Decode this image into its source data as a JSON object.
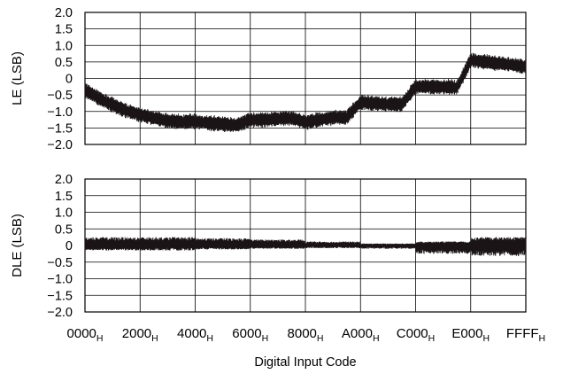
{
  "chart_data": [
    {
      "type": "line",
      "ylabel": "LE (LSB)",
      "ylim": [
        -2.0,
        2.0
      ],
      "yticks": [
        "2.0",
        "1.5",
        "1.0",
        "0.5",
        "0",
        "−0.5",
        "−1.0",
        "−1.5",
        "−2.0"
      ],
      "grid": true,
      "series": [
        {
          "x": [
            0,
            2048,
            4096,
            6144,
            8192,
            10240,
            12288,
            14336,
            16384,
            18432,
            20480,
            22528,
            24576,
            26624,
            28672,
            30720,
            32768,
            34816,
            36864,
            38912,
            40960,
            43008,
            45056,
            47104,
            49152,
            51200,
            53248,
            55296,
            57344,
            59392,
            61440,
            63488,
            65535
          ],
          "values": [
            -0.35,
            -0.6,
            -0.8,
            -0.98,
            -1.1,
            -1.2,
            -1.28,
            -1.32,
            -1.3,
            -1.35,
            -1.38,
            -1.42,
            -1.25,
            -1.25,
            -1.22,
            -1.2,
            -1.32,
            -1.25,
            -1.18,
            -1.18,
            -0.72,
            -0.75,
            -0.78,
            -0.78,
            -0.25,
            -0.25,
            -0.25,
            -0.28,
            0.55,
            0.5,
            0.45,
            0.42,
            0.35
          ],
          "band": 0.25
        }
      ]
    },
    {
      "type": "line",
      "ylabel": "DLE (LSB)",
      "ylim": [
        -2.0,
        2.0
      ],
      "yticks": [
        "2.0",
        "1.5",
        "1.0",
        "0.5",
        "0",
        "−0.5",
        "−1.0",
        "−1.5",
        "−2.0"
      ],
      "grid": true,
      "series": [
        {
          "x": [
            0,
            8192,
            16384,
            16385,
            24575,
            24576,
            32767,
            32768,
            40959,
            40960,
            49151,
            49152,
            57343,
            57344,
            65535
          ],
          "upper": [
            0.25,
            0.25,
            0.25,
            0.22,
            0.22,
            0.18,
            0.18,
            0.12,
            0.12,
            0.06,
            0.06,
            0.12,
            0.12,
            0.25,
            0.25
          ],
          "lower": [
            -0.15,
            -0.15,
            -0.15,
            -0.12,
            -0.12,
            -0.1,
            -0.1,
            -0.08,
            -0.08,
            -0.1,
            -0.1,
            -0.25,
            -0.25,
            -0.32,
            -0.32
          ]
        }
      ]
    }
  ],
  "xaxis": {
    "title": "Digital Input Code",
    "ticks": [
      {
        "x": 0,
        "label": "0000",
        "sub": "H"
      },
      {
        "x": 8192,
        "label": "2000",
        "sub": "H"
      },
      {
        "x": 16384,
        "label": "4000",
        "sub": "H"
      },
      {
        "x": 24576,
        "label": "6000",
        "sub": "H"
      },
      {
        "x": 32768,
        "label": "8000",
        "sub": "H"
      },
      {
        "x": 40960,
        "label": "A000",
        "sub": "H"
      },
      {
        "x": 49152,
        "label": "C000",
        "sub": "H"
      },
      {
        "x": 57344,
        "label": "E000",
        "sub": "H"
      },
      {
        "x": 65535,
        "label": "FFFF",
        "sub": "H"
      }
    ],
    "xlim": [
      0,
      65535
    ]
  },
  "colors": {
    "trace": "#1a1416",
    "grid": "#000000",
    "background": "#ffffff"
  }
}
